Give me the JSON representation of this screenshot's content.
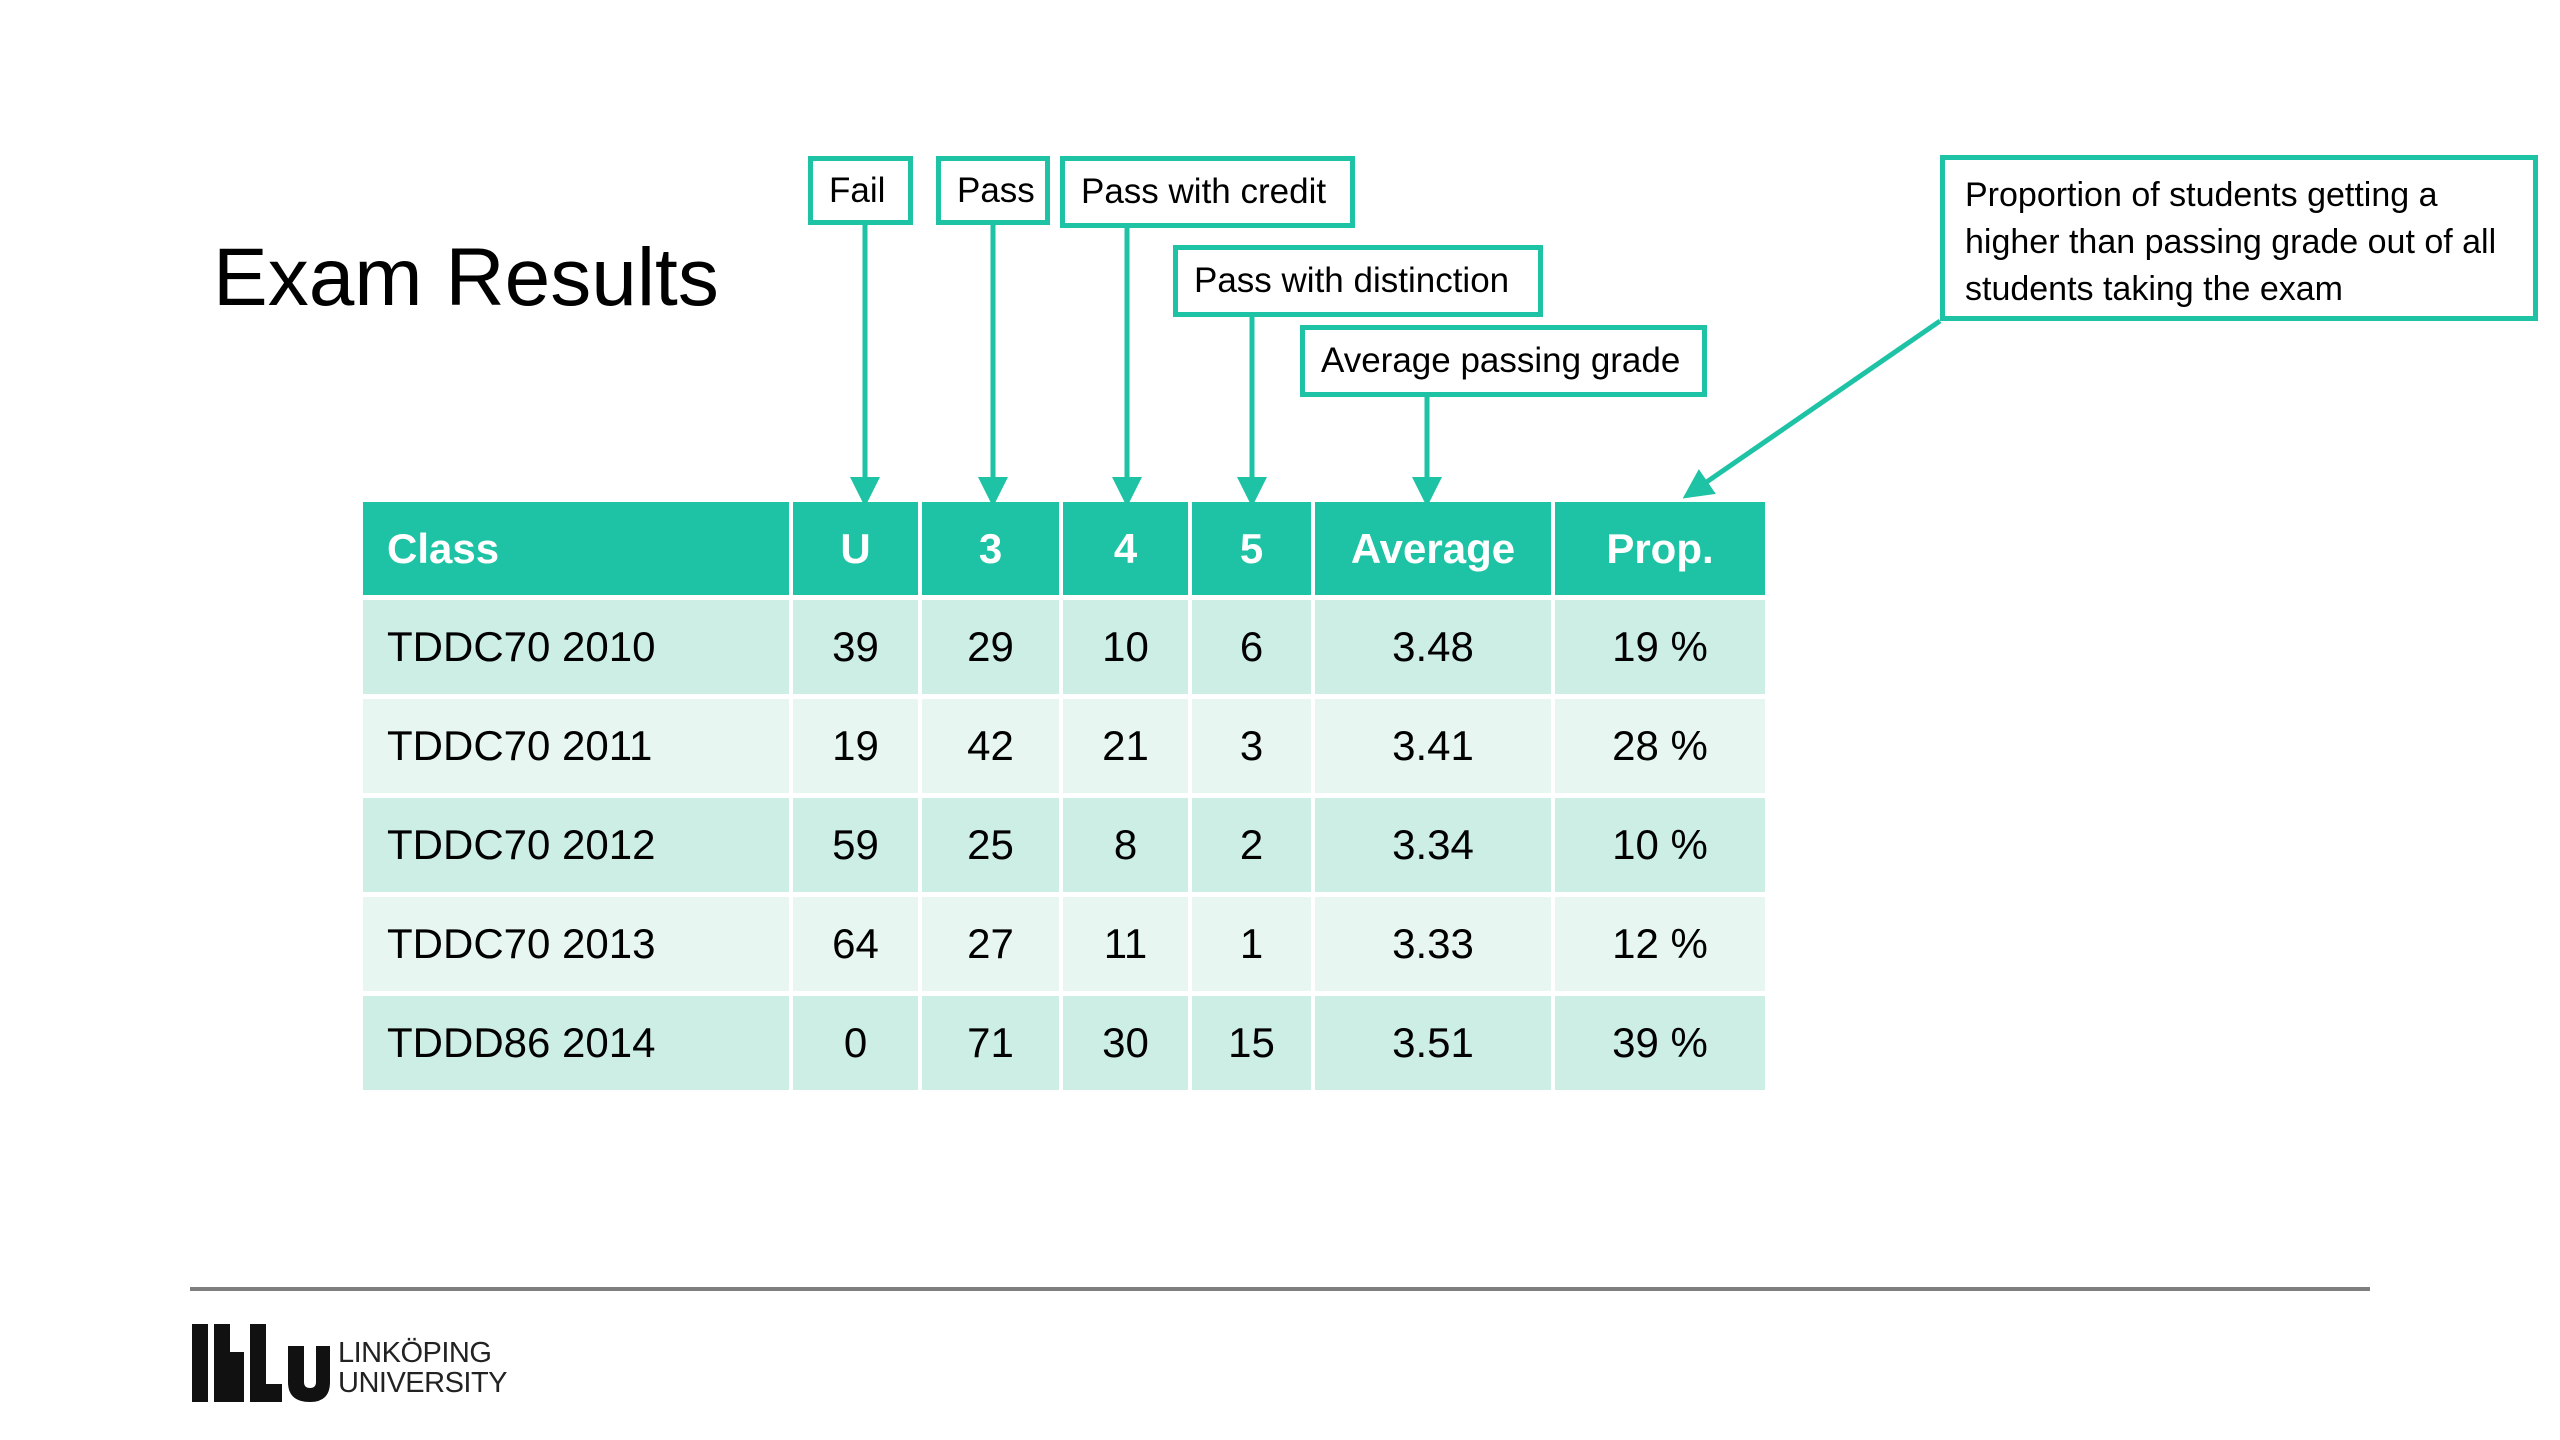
{
  "slide": {
    "title": "Exam Results"
  },
  "table": {
    "headers": [
      "Class",
      "U",
      "3",
      "4",
      "5",
      "Average",
      "Prop."
    ],
    "rows": [
      [
        "TDDC70 2010",
        "39",
        "29",
        "10",
        "6",
        "3.48",
        "19 %"
      ],
      [
        "TDDC70 2011",
        "19",
        "42",
        "21",
        "3",
        "3.41",
        "28 %"
      ],
      [
        "TDDC70 2012",
        "59",
        "25",
        "8",
        "2",
        "3.34",
        "10 %"
      ],
      [
        "TDDC70 2013",
        "64",
        "27",
        "11",
        "1",
        "3.33",
        "12 %"
      ],
      [
        "TDDD86 2014",
        "0",
        "71",
        "30",
        "15",
        "3.51",
        "39 %"
      ]
    ]
  },
  "callouts": {
    "fail": "Fail",
    "pass": "Pass",
    "pass_credit": "Pass with credit",
    "pass_distinction": "Pass with distinction",
    "average": "Average passing grade",
    "proportion": "Proportion of students getting a higher than passing grade out of all students taking the exam"
  },
  "footer": {
    "logo_line1": "LINKÖPING",
    "logo_line2": "UNIVERSITY"
  },
  "colors": {
    "accent": "#1ec3a5",
    "row_dark": "#cdeee5",
    "row_light": "#e8f6f2"
  }
}
